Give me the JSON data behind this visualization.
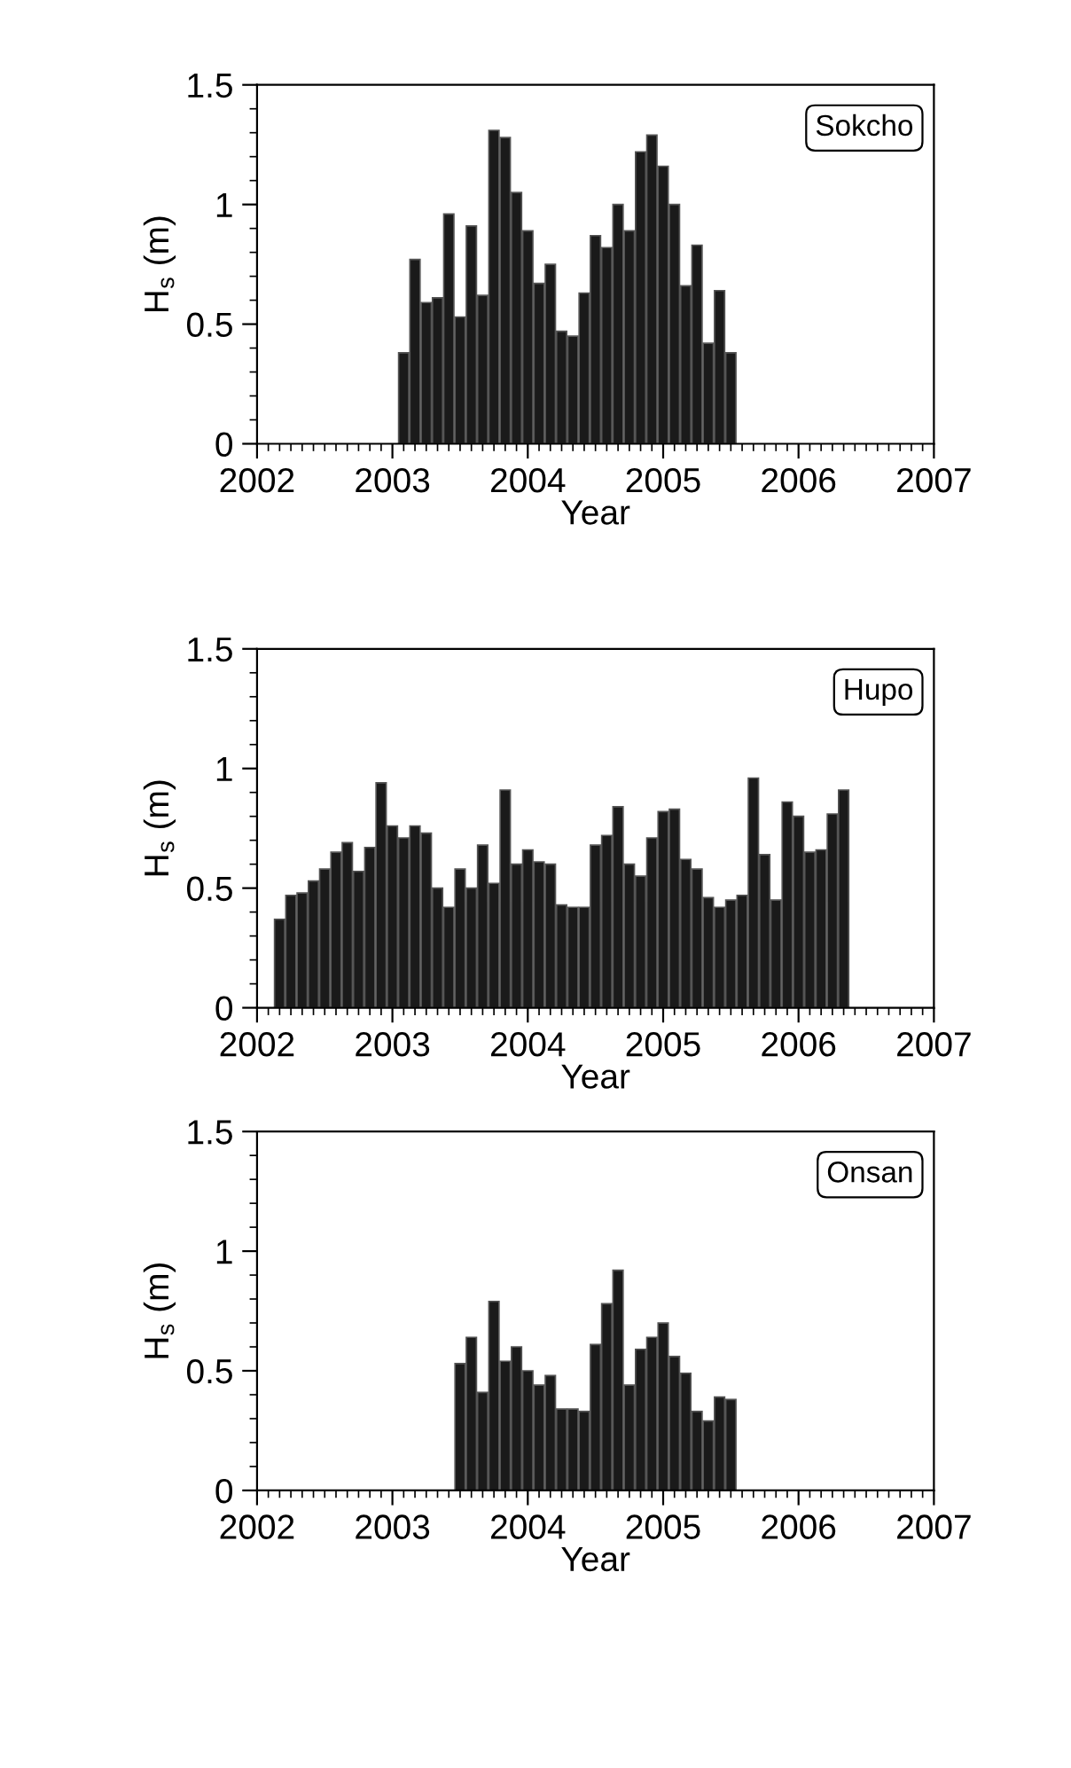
{
  "chart_data": [
    {
      "type": "bar",
      "xlabel": "Year",
      "ylabel": "H$_{s}$ (m)",
      "annotations": [
        "Sokcho"
      ],
      "x": [
        "2003-02",
        "2003-03",
        "2003-04",
        "2003-05",
        "2003-06",
        "2003-07",
        "2003-08",
        "2003-09",
        "2003-10",
        "2003-11",
        "2003-12",
        "2004-01",
        "2004-02",
        "2004-03",
        "2004-04",
        "2004-05",
        "2004-06",
        "2004-07",
        "2004-08",
        "2004-09",
        "2004-10",
        "2004-11",
        "2004-12",
        "2005-01",
        "2005-02",
        "2005-03",
        "2005-04",
        "2005-05",
        "2005-06",
        "2005-07"
      ],
      "series": [
        {
          "color": "#1a1a1a",
          "values": [
            0.38,
            0.77,
            0.59,
            0.61,
            0.96,
            0.53,
            0.91,
            0.62,
            1.31,
            1.28,
            1.05,
            0.89,
            0.67,
            0.75,
            0.47,
            0.45,
            0.63,
            0.87,
            0.82,
            1.0,
            0.89,
            1.22,
            1.29,
            1.16,
            1.0,
            0.66,
            0.83,
            0.42,
            0.64,
            0.38
          ]
        }
      ],
      "xlim": [
        "2002",
        "2007"
      ],
      "xticks": [
        "2002",
        "2003",
        "2004",
        "2005",
        "2006",
        "2007"
      ],
      "ylim": [
        0,
        1.5
      ],
      "yticks": [
        0,
        0.5,
        1,
        1.5
      ],
      "grid": false,
      "legend": false
    },
    {
      "type": "bar",
      "xlabel": "Year",
      "ylabel": "H$_{s}$ (m)",
      "annotations": [
        "Hupo"
      ],
      "x": [
        "2002-03",
        "2002-04",
        "2002-05",
        "2002-06",
        "2002-07",
        "2002-08",
        "2002-09",
        "2002-10",
        "2002-11",
        "2002-12",
        "2003-01",
        "2003-02",
        "2003-03",
        "2003-04",
        "2003-05",
        "2003-06",
        "2003-07",
        "2003-08",
        "2003-09",
        "2003-10",
        "2003-11",
        "2003-12",
        "2004-01",
        "2004-02",
        "2004-03",
        "2004-04",
        "2004-05",
        "2004-06",
        "2004-07",
        "2004-08",
        "2004-09",
        "2004-10",
        "2004-11",
        "2004-12",
        "2005-01",
        "2005-02",
        "2005-03",
        "2005-04",
        "2005-05",
        "2005-06",
        "2005-07",
        "2005-08",
        "2005-09",
        "2005-10",
        "2005-11",
        "2005-12",
        "2006-01",
        "2006-02",
        "2006-03",
        "2006-04",
        "2006-05"
      ],
      "series": [
        {
          "color": "#1a1a1a",
          "values": [
            0.37,
            0.47,
            0.48,
            0.53,
            0.58,
            0.65,
            0.69,
            0.57,
            0.67,
            0.94,
            0.76,
            0.71,
            0.76,
            0.73,
            0.5,
            0.42,
            0.58,
            0.5,
            0.68,
            0.52,
            0.91,
            0.6,
            0.66,
            0.61,
            0.6,
            0.43,
            0.42,
            0.42,
            0.68,
            0.72,
            0.84,
            0.6,
            0.55,
            0.71,
            0.82,
            0.83,
            0.62,
            0.58,
            0.46,
            0.42,
            0.45,
            0.47,
            0.96,
            0.64,
            0.45,
            0.86,
            0.8,
            0.65,
            0.66,
            0.81,
            0.91
          ]
        }
      ],
      "xlim": [
        "2002",
        "2007"
      ],
      "xticks": [
        "2002",
        "2003",
        "2004",
        "2005",
        "2006",
        "2007"
      ],
      "ylim": [
        0,
        1.5
      ],
      "yticks": [
        0,
        0.5,
        1,
        1.5
      ],
      "grid": false,
      "legend": false
    },
    {
      "type": "bar",
      "xlabel": "Year",
      "ylabel": "H$_{s}$ (m)",
      "annotations": [
        "Onsan"
      ],
      "x": [
        "2003-07",
        "2003-08",
        "2003-09",
        "2003-10",
        "2003-11",
        "2003-12",
        "2004-01",
        "2004-02",
        "2004-03",
        "2004-04",
        "2004-05",
        "2004-06",
        "2004-07",
        "2004-08",
        "2004-09",
        "2004-10",
        "2004-11",
        "2004-12",
        "2005-01",
        "2005-02",
        "2005-03",
        "2005-04",
        "2005-05",
        "2005-06",
        "2005-07"
      ],
      "series": [
        {
          "color": "#1a1a1a",
          "values": [
            0.53,
            0.64,
            0.41,
            0.79,
            0.54,
            0.6,
            0.5,
            0.44,
            0.48,
            0.34,
            0.34,
            0.33,
            0.61,
            0.78,
            0.92,
            0.44,
            0.59,
            0.64,
            0.7,
            0.56,
            0.49,
            0.33,
            0.29,
            0.39,
            0.38
          ]
        }
      ],
      "xlim": [
        "2002",
        "2007"
      ],
      "xticks": [
        "2002",
        "2003",
        "2004",
        "2005",
        "2006",
        "2007"
      ],
      "ylim": [
        0,
        1.5
      ],
      "yticks": [
        0,
        0.5,
        1,
        1.5
      ],
      "grid": false,
      "legend": false
    }
  ]
}
